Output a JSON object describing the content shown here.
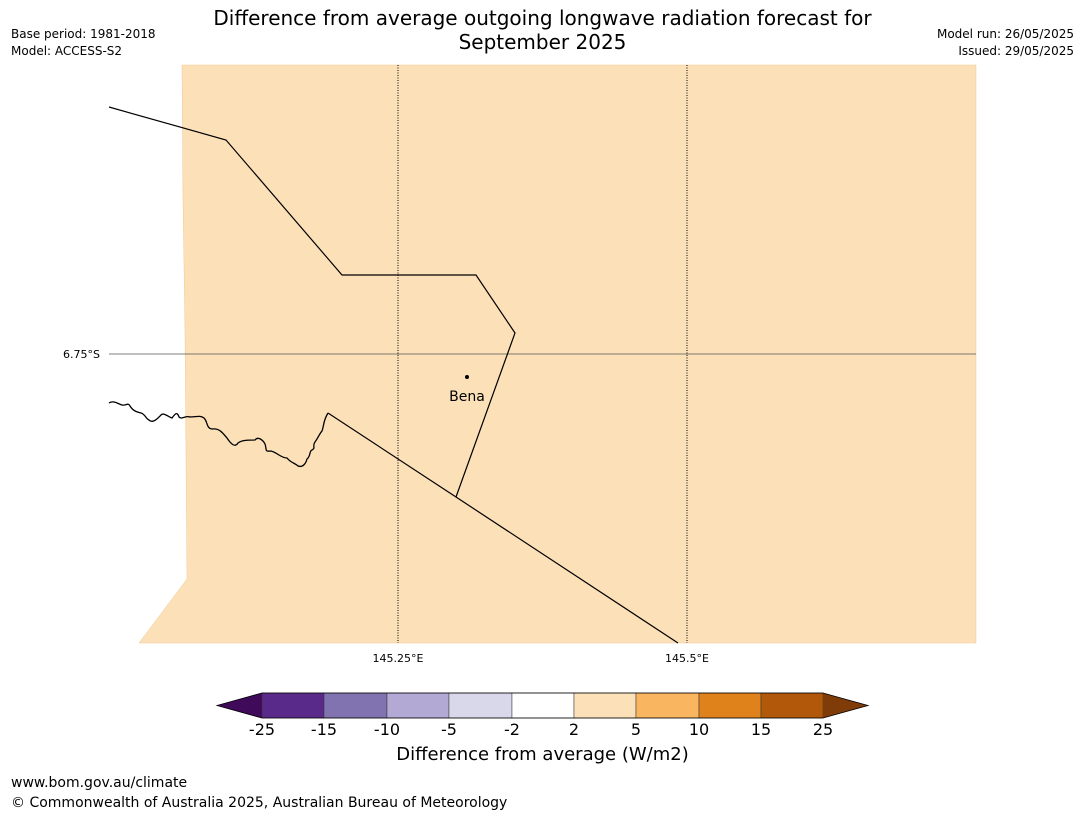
{
  "header": {
    "title_line1": "Difference from average outgoing longwave radiation forecast for",
    "title_line2": "September 2025",
    "base_period": "Base period: 1981-2018",
    "model": "Model: ACCESS-S2",
    "model_run": "Model run: 26/05/2025",
    "issued": "Issued: 29/05/2025"
  },
  "map": {
    "fill_color": "#fce0b8",
    "place": {
      "name": "Bena"
    },
    "lat_labels": [
      "6.75°S"
    ],
    "lon_labels": [
      "145.25°E",
      "145.5°E"
    ]
  },
  "colorbar": {
    "label": "Difference from average (W/m2)",
    "ticks": [
      "-25",
      "-15",
      "-10",
      "-5",
      "-2",
      "2",
      "5",
      "10",
      "15",
      "25"
    ],
    "colors": [
      "#3f0a5a",
      "#5a2a8a",
      "#8172b0",
      "#b2a9d4",
      "#d9d7ea",
      "#ffffff",
      "#fce0b8",
      "#f9b55f",
      "#e0821b",
      "#b2580b",
      "#7f3b08"
    ]
  },
  "footer": {
    "url": "www.bom.gov.au/climate",
    "copyright": "© Commonwealth of Australia 2025, Australian Bureau of Meteorology"
  }
}
